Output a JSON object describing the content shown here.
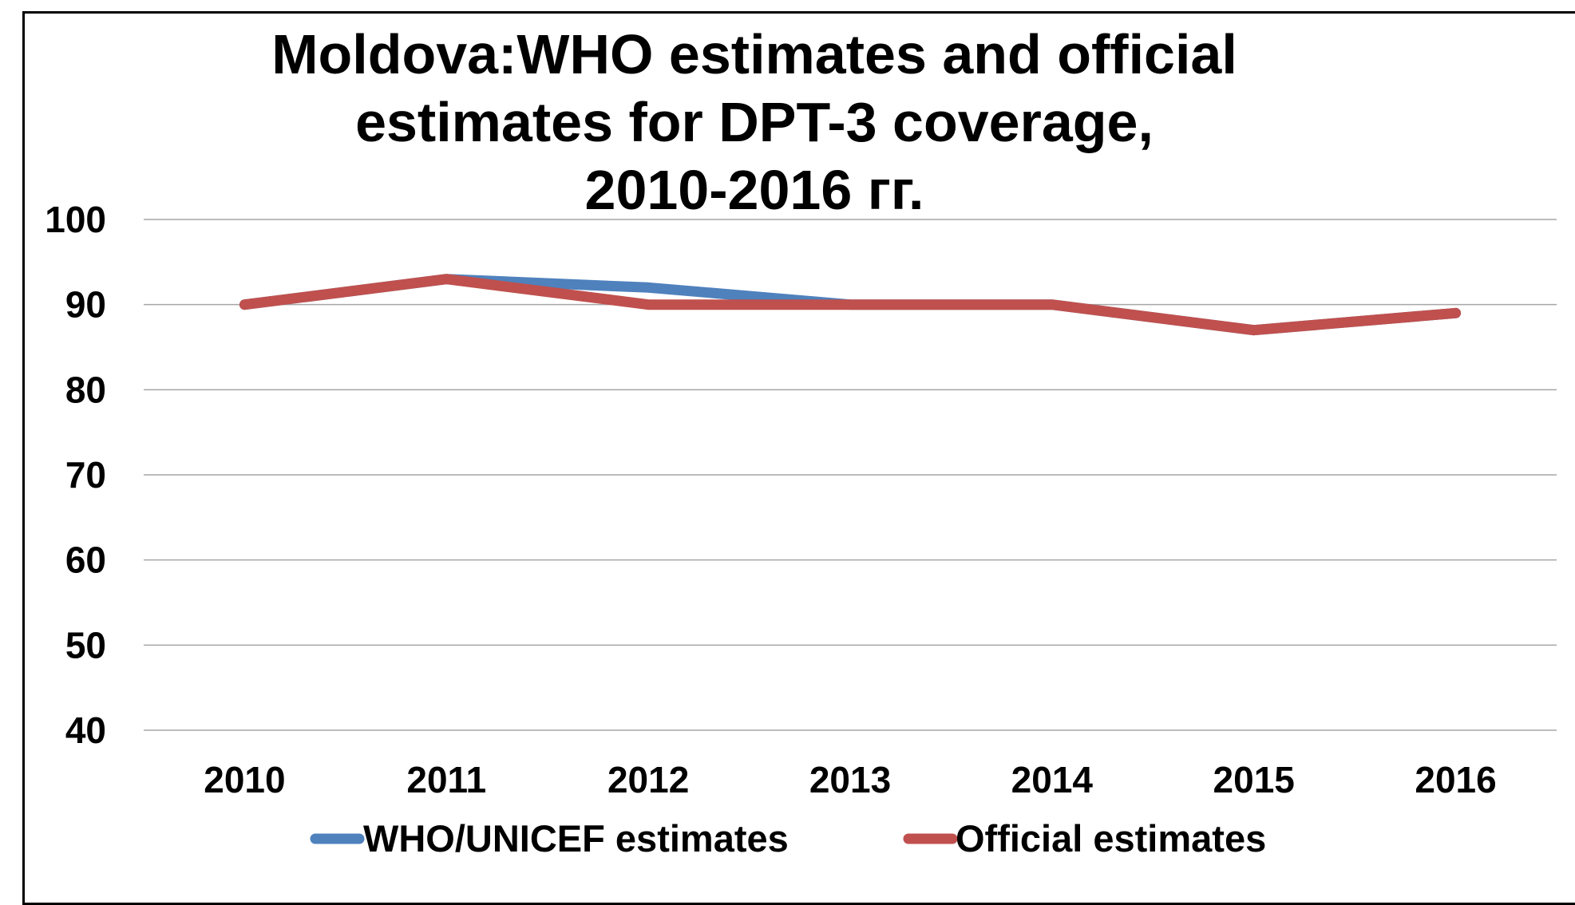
{
  "chart_data": {
    "type": "line",
    "title_lines": [
      "Moldova:WHO estimates and official",
      "estimates for DPT-3 coverage,",
      "2010-2016 гг."
    ],
    "categories": [
      "2010",
      "2011",
      "2012",
      "2013",
      "2014",
      "2015",
      "2016"
    ],
    "series": [
      {
        "name": "WHO/UNICEF estimates",
        "color": "#4f81bd",
        "values": [
          90,
          93,
          92,
          90,
          90,
          87,
          89
        ]
      },
      {
        "name": "Official estimates",
        "color": "#c0504d",
        "values": [
          90,
          93,
          90,
          90,
          90,
          87,
          89
        ]
      }
    ],
    "ylim": [
      40,
      100
    ],
    "yticks": [
      100,
      90,
      80,
      70,
      60,
      50,
      40
    ],
    "grid": true,
    "legend_position": "bottom"
  }
}
